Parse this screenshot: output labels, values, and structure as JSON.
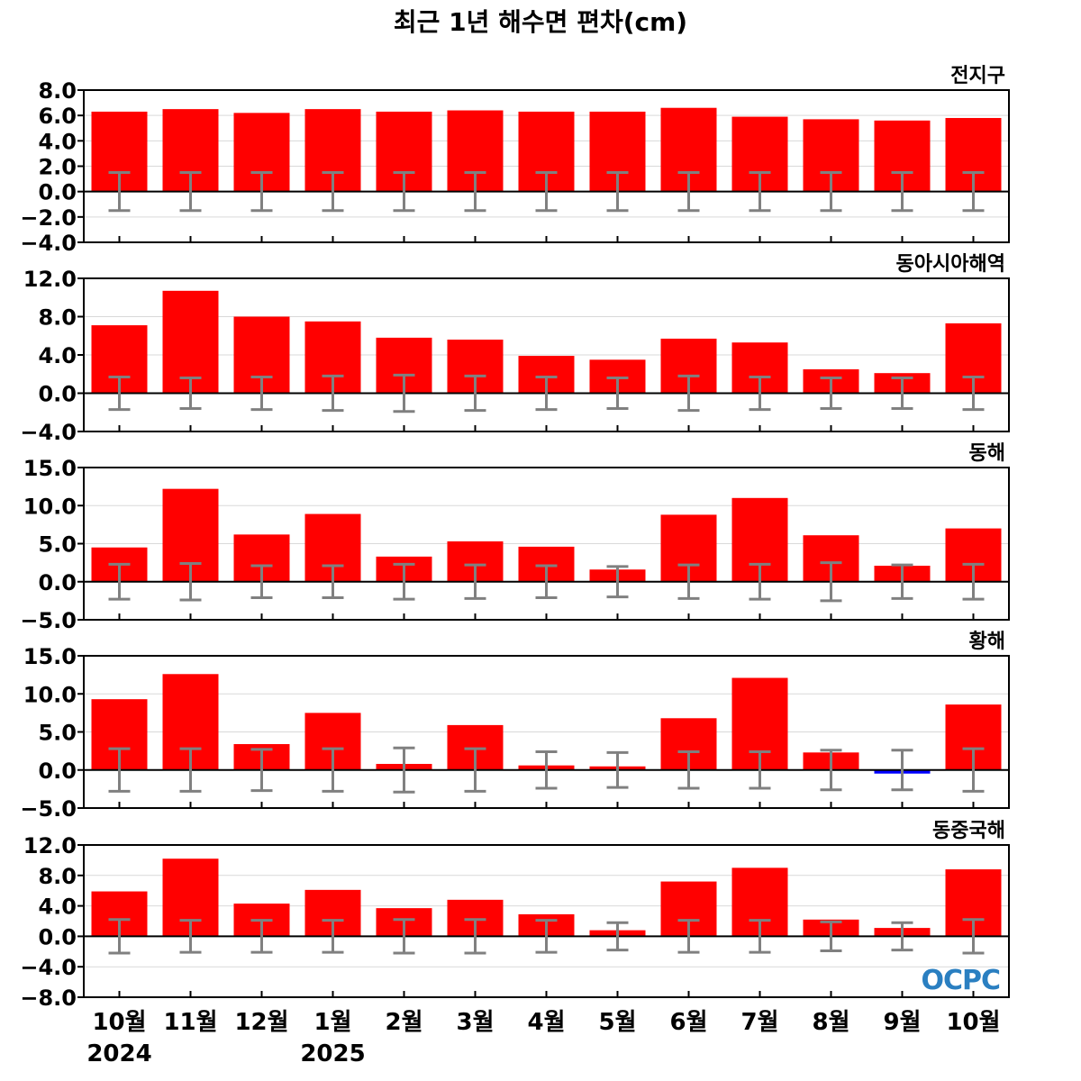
{
  "chart_data": {
    "type": "bar",
    "title": "최근 1년 해수면 편차(cm)",
    "categories": [
      "10월",
      "11월",
      "12월",
      "1월",
      "2월",
      "3월",
      "4월",
      "5월",
      "6월",
      "7월",
      "8월",
      "9월",
      "10월"
    ],
    "year_labels": [
      {
        "index": 0,
        "label": "2024"
      },
      {
        "index": 3,
        "label": "2025"
      }
    ],
    "logo_text": "OCPC",
    "colors": {
      "positive": "#ff0000",
      "negative": "#0000ff",
      "errorbar": "#808080",
      "grid": "#d9d9d9",
      "zero": "#000000"
    },
    "panels": [
      {
        "title": "전지구",
        "ylim": [
          -4.0,
          8.0
        ],
        "yticks": [
          "8.0",
          "6.0",
          "4.0",
          "2.0",
          "0.0",
          "−2.0",
          "−4.0"
        ],
        "ytick_values": [
          8,
          6,
          4,
          2,
          0,
          -2,
          -4
        ],
        "values": [
          6.3,
          6.5,
          6.2,
          6.5,
          6.3,
          6.4,
          6.3,
          6.3,
          6.6,
          5.9,
          5.7,
          5.6,
          5.8
        ],
        "error": [
          1.5,
          1.5,
          1.5,
          1.5,
          1.5,
          1.5,
          1.5,
          1.5,
          1.5,
          1.5,
          1.5,
          1.5,
          1.5
        ]
      },
      {
        "title": "동아시아해역",
        "ylim": [
          -4.0,
          12.0
        ],
        "yticks": [
          "12.0",
          "8.0",
          "4.0",
          "0.0",
          "−4.0"
        ],
        "ytick_values": [
          12,
          8,
          4,
          0,
          -4
        ],
        "values": [
          7.1,
          10.7,
          8.0,
          7.5,
          5.8,
          5.6,
          3.9,
          3.5,
          5.7,
          5.3,
          2.5,
          2.1,
          7.3
        ],
        "error": [
          1.7,
          1.6,
          1.7,
          1.8,
          1.9,
          1.8,
          1.7,
          1.6,
          1.8,
          1.7,
          1.6,
          1.6,
          1.7
        ]
      },
      {
        "title": "동해",
        "ylim": [
          -5.0,
          15.0
        ],
        "yticks": [
          "15.0",
          "10.0",
          "5.0",
          "0.0",
          "−5.0"
        ],
        "ytick_values": [
          15,
          10,
          5,
          0,
          -5
        ],
        "values": [
          4.5,
          12.2,
          6.2,
          8.9,
          3.3,
          5.3,
          4.6,
          1.6,
          8.8,
          11.0,
          6.1,
          2.1,
          7.0
        ],
        "error": [
          2.3,
          2.4,
          2.1,
          2.1,
          2.3,
          2.2,
          2.1,
          2.0,
          2.2,
          2.3,
          2.5,
          2.2,
          2.3
        ]
      },
      {
        "title": "황해",
        "ylim": [
          -5.0,
          15.0
        ],
        "yticks": [
          "15.0",
          "10.0",
          "5.0",
          "0.0",
          "−5.0"
        ],
        "ytick_values": [
          15,
          10,
          5,
          0,
          -5
        ],
        "values": [
          9.3,
          12.6,
          3.4,
          7.5,
          0.8,
          5.9,
          0.6,
          0.3,
          6.8,
          12.1,
          2.3,
          -0.3,
          8.6
        ],
        "error": [
          2.8,
          2.8,
          2.7,
          2.8,
          2.9,
          2.8,
          2.4,
          2.3,
          2.4,
          2.4,
          2.6,
          2.6,
          2.8
        ]
      },
      {
        "title": "동중국해",
        "ylim": [
          -8.0,
          12.0
        ],
        "yticks": [
          "12.0",
          "8.0",
          "4.0",
          "0.0",
          "−4.0",
          "−8.0"
        ],
        "ytick_values": [
          12,
          8,
          4,
          0,
          -4,
          -8
        ],
        "values": [
          5.9,
          10.2,
          4.3,
          6.1,
          3.7,
          4.8,
          2.9,
          0.8,
          7.2,
          9.0,
          2.2,
          1.1,
          8.8
        ],
        "error": [
          2.2,
          2.1,
          2.1,
          2.1,
          2.2,
          2.2,
          2.1,
          1.8,
          2.1,
          2.1,
          1.9,
          1.8,
          2.2
        ]
      }
    ]
  }
}
